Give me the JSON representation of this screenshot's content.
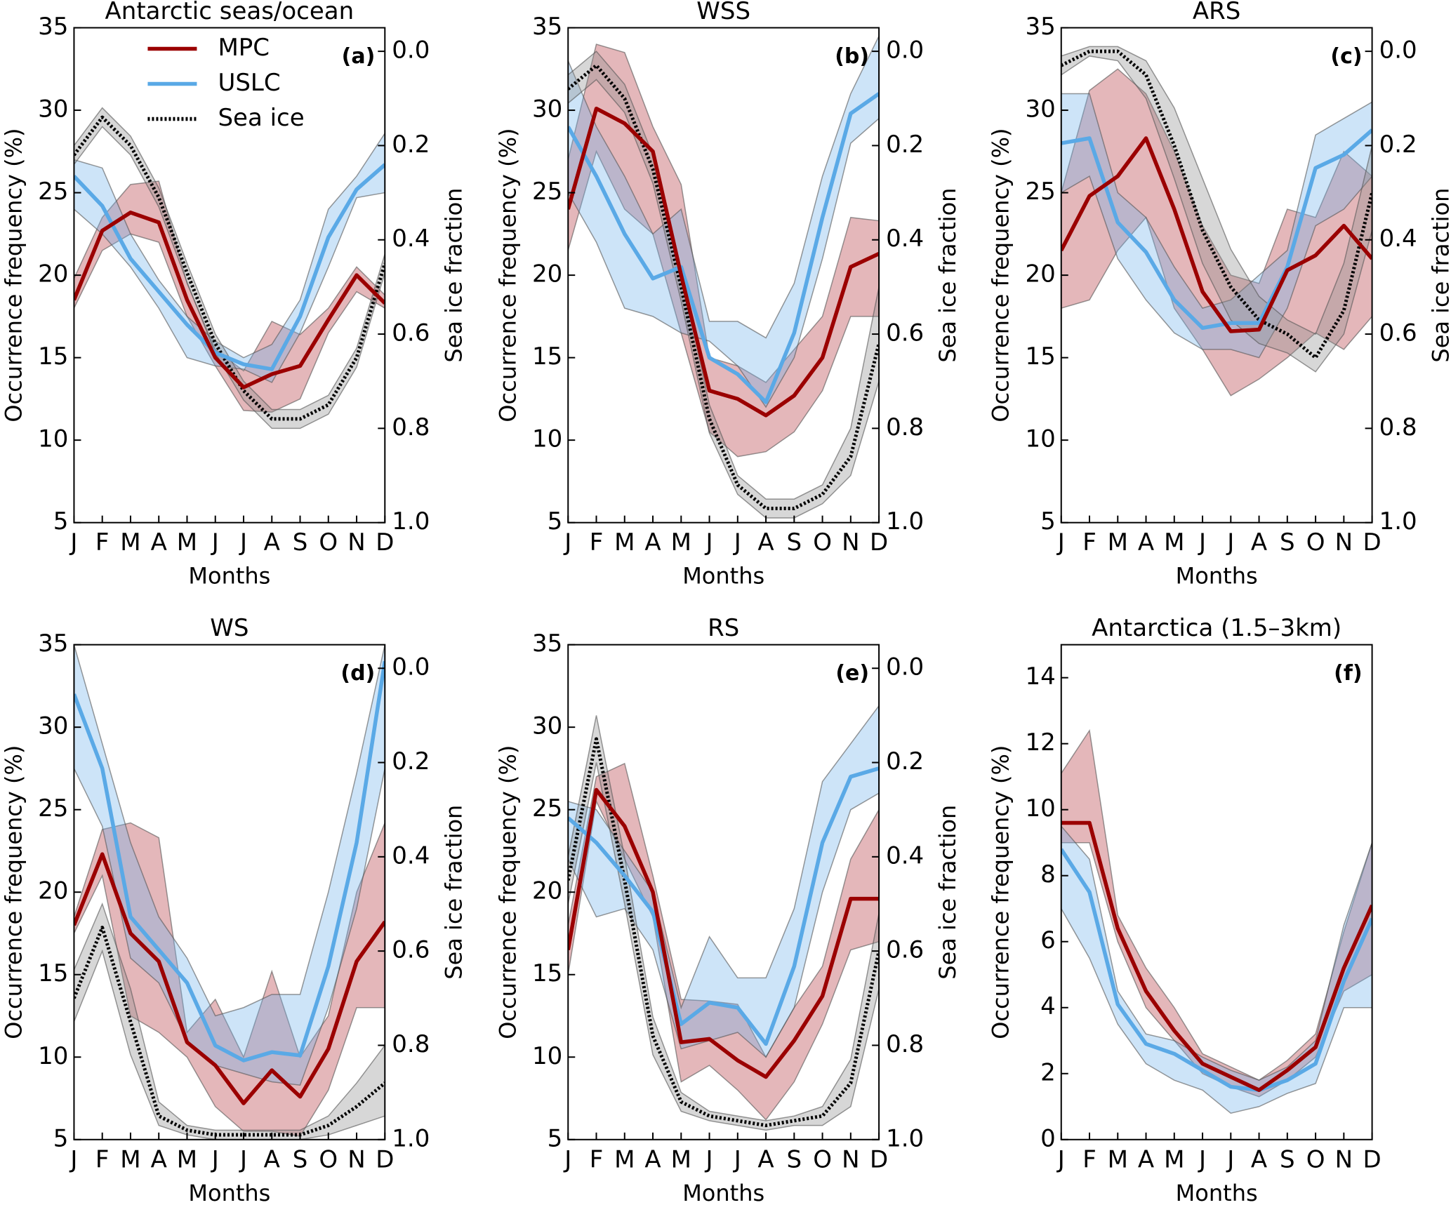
{
  "chart_data": [
    {
      "type": "line",
      "title": "Antarctic seas/ocean",
      "panel_label": "(a)",
      "xlabel": "Months",
      "ylabel": "Occurrence frequency (%)",
      "y2label": "Sea ice fraction",
      "legend": "upper left",
      "categories": [
        "J",
        "F",
        "M",
        "A",
        "M",
        "J",
        "J",
        "A",
        "S",
        "O",
        "N",
        "D"
      ],
      "ylim": [
        5,
        35
      ],
      "yticks": [
        5,
        10,
        15,
        20,
        25,
        30,
        35
      ],
      "y2lim": [
        1.0,
        -0.05
      ],
      "y2ticks": [
        {
          "value": 0,
          "label": "0.0"
        },
        0.2,
        0.4,
        0.6,
        0.8,
        {
          "value": 1,
          "label": "1.0"
        }
      ],
      "series": [
        {
          "name": "MPC",
          "color": "#9b0000",
          "band_color": "#b2313a",
          "values": [
            18.5,
            22.7,
            23.8,
            23.2,
            18.5,
            15.0,
            13.2,
            14.0,
            14.5,
            17.3,
            20.0,
            18.3
          ],
          "lower": [
            18,
            21.5,
            22.5,
            22,
            17.5,
            14.5,
            11.8,
            11.7,
            12.5,
            16.5,
            19,
            18
          ],
          "upper": [
            19.8,
            23.5,
            25.5,
            25.7,
            19.5,
            15.5,
            14.2,
            17.2,
            16.4,
            18,
            20.5,
            18.8
          ]
        },
        {
          "name": "USLC",
          "color": "#5aa9e6",
          "band_color": "#6fb3ec",
          "values": [
            26,
            24.2,
            21,
            19,
            17,
            15.3,
            14.6,
            14.3,
            17.5,
            22.3,
            25.2,
            26.7
          ],
          "lower": [
            24,
            22.5,
            20.5,
            18,
            15,
            14.5,
            14.3,
            13.5,
            16.5,
            20.5,
            24.7,
            25
          ],
          "upper": [
            27,
            26.5,
            22.5,
            19.7,
            17.5,
            16,
            15,
            15.8,
            18.5,
            24,
            26,
            28.6
          ]
        },
        {
          "name": "Sea ice",
          "color": "#000000",
          "band_color": "#8c8c8c",
          "style": "dotted",
          "axis": "y2",
          "values": [
            0.22,
            0.14,
            0.2,
            0.31,
            0.47,
            0.62,
            0.72,
            0.78,
            0.78,
            0.75,
            0.65,
            0.45
          ],
          "lower": [
            0.2,
            0.12,
            0.18,
            0.29,
            0.45,
            0.6,
            0.7,
            0.76,
            0.76,
            0.73,
            0.63,
            0.43
          ],
          "upper": [
            0.24,
            0.16,
            0.22,
            0.33,
            0.49,
            0.64,
            0.74,
            0.8,
            0.8,
            0.77,
            0.67,
            0.47
          ]
        }
      ]
    },
    {
      "type": "line",
      "title": "WSS",
      "panel_label": "(b)",
      "xlabel": "Months",
      "ylabel": "Occurrence frequency (%)",
      "y2label": "Sea ice fraction",
      "categories": [
        "J",
        "F",
        "M",
        "A",
        "M",
        "J",
        "J",
        "A",
        "S",
        "O",
        "N",
        "D"
      ],
      "ylim": [
        5,
        35
      ],
      "yticks": [
        5,
        10,
        15,
        20,
        25,
        30,
        35
      ],
      "y2lim": [
        1.0,
        -0.05
      ],
      "y2ticks": [
        {
          "value": 0,
          "label": "0.0"
        },
        0.2,
        0.4,
        0.6,
        0.8,
        {
          "value": 1,
          "label": "1.0"
        }
      ],
      "series": [
        {
          "color": "#9b0000",
          "band_color": "#b2313a",
          "values": [
            24,
            30.1,
            29.2,
            27.5,
            20,
            13,
            12.5,
            11.5,
            12.7,
            15,
            20.5,
            21.3
          ],
          "lower": [
            21.5,
            27.5,
            24,
            22.5,
            16.5,
            10.5,
            9,
            9.3,
            10.5,
            13,
            17.5,
            17.5
          ],
          "upper": [
            27,
            34,
            33.5,
            29,
            25.5,
            15,
            14.5,
            13.5,
            15.5,
            17.5,
            23.5,
            23.3
          ]
        },
        {
          "color": "#5aa9e6",
          "band_color": "#6fb3ec",
          "values": [
            29,
            26,
            22.5,
            19.8,
            20.5,
            15,
            14,
            12.3,
            16.5,
            23.5,
            29.8,
            31
          ],
          "lower": [
            25,
            22,
            18,
            17.5,
            16.5,
            16,
            14.5,
            12,
            15,
            21,
            28,
            29.5
          ],
          "upper": [
            33,
            29,
            26,
            22.5,
            24,
            17.2,
            17.2,
            16.2,
            19.5,
            26,
            31,
            34.5
          ]
        },
        {
          "color": "#000000",
          "band_color": "#8c8c8c",
          "style": "dotted",
          "axis": "y2",
          "values": [
            0.08,
            0.03,
            0.1,
            0.25,
            0.5,
            0.78,
            0.92,
            0.97,
            0.97,
            0.94,
            0.86,
            0.62
          ],
          "lower": [
            0.05,
            0.0,
            0.07,
            0.22,
            0.47,
            0.75,
            0.9,
            0.95,
            0.95,
            0.92,
            0.8,
            0.5
          ],
          "upper": [
            0.11,
            0.06,
            0.13,
            0.28,
            0.53,
            0.81,
            0.94,
            0.99,
            0.99,
            0.96,
            0.9,
            0.7
          ]
        }
      ]
    },
    {
      "type": "line",
      "title": "ARS",
      "panel_label": "(c)",
      "xlabel": "Months",
      "ylabel": "Occurrence frequency (%)",
      "y2label": "Sea ice fraction",
      "categories": [
        "J",
        "F",
        "M",
        "A",
        "M",
        "J",
        "J",
        "A",
        "S",
        "O",
        "N",
        "D"
      ],
      "ylim": [
        5,
        35
      ],
      "yticks": [
        5,
        10,
        15,
        20,
        25,
        30,
        35
      ],
      "y2lim": [
        1.0,
        -0.05
      ],
      "y2ticks": [
        {
          "value": 0,
          "label": "0.0"
        },
        0.2,
        0.4,
        0.6,
        0.8,
        {
          "value": 1,
          "label": "1.0"
        }
      ],
      "series": [
        {
          "color": "#9b0000",
          "band_color": "#b2313a",
          "values": [
            21.5,
            24.8,
            26,
            28.3,
            24,
            19,
            16.6,
            16.7,
            20.3,
            21.2,
            23,
            21
          ],
          "lower": [
            18,
            18.5,
            21.5,
            23.5,
            18,
            15.5,
            12.7,
            13.7,
            15,
            16.5,
            15.5,
            17.5
          ],
          "upper": [
            25,
            31.2,
            32.5,
            31,
            27.5,
            23,
            20,
            19.5,
            24,
            23.5,
            27.5,
            26
          ]
        },
        {
          "color": "#5aa9e6",
          "band_color": "#6fb3ec",
          "values": [
            28,
            28.3,
            23.2,
            21.4,
            18.5,
            16.8,
            17.1,
            17.1,
            20.5,
            26.5,
            27.3,
            28.8
          ],
          "lower": [
            25,
            26,
            21,
            18.5,
            16.5,
            15.5,
            15.5,
            15,
            18,
            23,
            24,
            26
          ],
          "upper": [
            31,
            31,
            25,
            23.5,
            20.5,
            18,
            18.5,
            20,
            21.5,
            28.5,
            29.5,
            30.5
          ]
        },
        {
          "color": "#000000",
          "band_color": "#8c8c8c",
          "style": "dotted",
          "axis": "y2",
          "values": [
            0.03,
            0.0,
            0.0,
            0.05,
            0.2,
            0.38,
            0.5,
            0.57,
            0.6,
            0.65,
            0.55,
            0.3
          ],
          "lower": [
            0.01,
            -0.01,
            -0.01,
            0.02,
            0.12,
            0.27,
            0.42,
            0.52,
            0.57,
            0.6,
            0.45,
            0.2
          ],
          "upper": [
            0.05,
            0.01,
            0.02,
            0.1,
            0.27,
            0.45,
            0.57,
            0.62,
            0.64,
            0.68,
            0.6,
            0.38
          ]
        }
      ]
    },
    {
      "type": "line",
      "title": "WS",
      "panel_label": "(d)",
      "xlabel": "Months",
      "ylabel": "Occurrence frequency (%)",
      "y2label": "Sea ice fraction",
      "categories": [
        "J",
        "F",
        "M",
        "A",
        "M",
        "J",
        "J",
        "A",
        "S",
        "O",
        "N",
        "D"
      ],
      "ylim": [
        5,
        35
      ],
      "yticks": [
        5,
        10,
        15,
        20,
        25,
        30,
        35
      ],
      "y2lim": [
        1.0,
        -0.05
      ],
      "y2ticks": [
        {
          "value": 0,
          "label": "0.0"
        },
        0.2,
        0.4,
        0.6,
        0.8,
        {
          "value": 1,
          "label": "1.0"
        }
      ],
      "series": [
        {
          "color": "#9b0000",
          "band_color": "#b2313a",
          "values": [
            18,
            22.3,
            17.5,
            15.8,
            10.9,
            9.5,
            7.2,
            9.2,
            7.6,
            10.5,
            15.8,
            18.2
          ],
          "lower": [
            17.5,
            21,
            12.5,
            11.5,
            10,
            7,
            5.5,
            5.5,
            5.2,
            8,
            13,
            13
          ],
          "upper": [
            18.5,
            23.8,
            24.2,
            23.3,
            11.5,
            13.5,
            10,
            15.2,
            10,
            12.5,
            20,
            24.2
          ]
        },
        {
          "color": "#5aa9e6",
          "band_color": "#6fb3ec",
          "values": [
            32,
            27.5,
            18.5,
            16.5,
            14.5,
            10.7,
            9.8,
            10.3,
            10.1,
            15.5,
            23,
            34
          ],
          "lower": [
            27.5,
            24,
            16,
            14.5,
            11,
            9.5,
            9,
            8.5,
            8.3,
            13,
            19,
            27.5
          ],
          "upper": [
            35,
            29,
            23,
            18.5,
            16,
            12.5,
            13,
            13.8,
            13.8,
            20,
            27.2,
            35
          ]
        },
        {
          "color": "#000000",
          "band_color": "#8c8c8c",
          "style": "dotted",
          "axis": "y2",
          "values": [
            0.7,
            0.55,
            0.75,
            0.95,
            0.98,
            0.99,
            0.99,
            0.99,
            0.99,
            0.97,
            0.93,
            0.88
          ],
          "lower": [
            0.64,
            0.5,
            0.68,
            0.92,
            0.97,
            0.98,
            0.98,
            0.98,
            0.98,
            0.95,
            0.88,
            0.8
          ],
          "upper": [
            0.75,
            0.6,
            0.82,
            0.97,
            0.99,
            1.0,
            1.0,
            1.0,
            1.0,
            0.99,
            0.97,
            0.95
          ]
        }
      ]
    },
    {
      "type": "line",
      "title": "RS",
      "panel_label": "(e)",
      "xlabel": "Months",
      "ylabel": "Occurrence frequency (%)",
      "y2label": "Sea ice fraction",
      "categories": [
        "J",
        "F",
        "M",
        "A",
        "M",
        "J",
        "J",
        "A",
        "S",
        "O",
        "N",
        "D"
      ],
      "ylim": [
        5,
        35
      ],
      "yticks": [
        5,
        10,
        15,
        20,
        25,
        30,
        35
      ],
      "y2lim": [
        1.0,
        -0.05
      ],
      "y2ticks": [
        {
          "value": 0,
          "label": "0.0"
        },
        0.2,
        0.4,
        0.6,
        0.8,
        {
          "value": 1,
          "label": "1.0"
        }
      ],
      "series": [
        {
          "color": "#9b0000",
          "band_color": "#b2313a",
          "values": [
            16.5,
            26.2,
            24,
            20,
            10.9,
            11.1,
            9.8,
            8.8,
            11,
            13.7,
            19.6,
            19.6
          ],
          "lower": [
            15,
            25.5,
            22,
            18.5,
            8.5,
            9.5,
            8,
            6.2,
            8.5,
            12,
            16.5,
            17
          ],
          "upper": [
            18,
            27,
            27.8,
            21,
            13.5,
            13.4,
            13.2,
            10,
            13,
            15.5,
            22,
            25
          ]
        },
        {
          "color": "#5aa9e6",
          "band_color": "#6fb3ec",
          "values": [
            24.5,
            23,
            21,
            18.8,
            12,
            13.3,
            13,
            10.8,
            15.5,
            23,
            27,
            27.5
          ],
          "lower": [
            22,
            18.5,
            19,
            16.5,
            10.5,
            11,
            11.5,
            10,
            13,
            20,
            25,
            26
          ],
          "upper": [
            25.5,
            25,
            22.5,
            20,
            13,
            17.3,
            14.8,
            14.8,
            19,
            26.7,
            29,
            31.3
          ]
        },
        {
          "color": "#000000",
          "band_color": "#8c8c8c",
          "style": "dotted",
          "axis": "y2",
          "values": [
            0.45,
            0.15,
            0.45,
            0.78,
            0.92,
            0.95,
            0.96,
            0.97,
            0.96,
            0.95,
            0.88,
            0.6
          ],
          "lower": [
            0.4,
            0.1,
            0.4,
            0.74,
            0.9,
            0.94,
            0.95,
            0.96,
            0.95,
            0.93,
            0.83,
            0.52
          ],
          "upper": [
            0.5,
            0.2,
            0.5,
            0.82,
            0.94,
            0.96,
            0.97,
            0.98,
            0.97,
            0.97,
            0.93,
            0.68
          ]
        }
      ]
    },
    {
      "type": "line",
      "title": "Antarctica (1.5–3km)",
      "panel_label": "(f)",
      "xlabel": "Months",
      "ylabel": "Occurrence frequency (%)",
      "categories": [
        "J",
        "F",
        "M",
        "A",
        "M",
        "J",
        "J",
        "A",
        "S",
        "O",
        "N",
        "D"
      ],
      "ylim": [
        0,
        15
      ],
      "yticks": [
        0,
        2,
        4,
        6,
        8,
        10,
        12,
        14
      ],
      "series": [
        {
          "color": "#9b0000",
          "band_color": "#b2313a",
          "values": [
            9.6,
            9.6,
            6.4,
            4.5,
            3.3,
            2.3,
            1.9,
            1.5,
            2.1,
            2.8,
            5.2,
            7.1
          ],
          "lower": [
            9,
            9,
            6,
            4,
            3,
            2,
            1.6,
            1.3,
            1.8,
            2.5,
            4.5,
            5
          ],
          "upper": [
            11.1,
            12.4,
            6.8,
            5.2,
            4,
            2.6,
            2.2,
            1.8,
            2.4,
            3.2,
            6.3,
            9
          ]
        },
        {
          "color": "#5aa9e6",
          "band_color": "#6fb3ec",
          "values": [
            8.8,
            7.5,
            4.1,
            2.9,
            2.6,
            2.1,
            1.6,
            1.5,
            1.8,
            2.3,
            4.8,
            6.7
          ],
          "lower": [
            7,
            5.5,
            3.5,
            2.3,
            1.8,
            1.5,
            0.8,
            1,
            1.4,
            1.7,
            4,
            4
          ],
          "upper": [
            9.5,
            8.5,
            4.5,
            3.2,
            3,
            2.5,
            2.1,
            1.8,
            2.2,
            3,
            6.5,
            9
          ]
        }
      ]
    }
  ]
}
